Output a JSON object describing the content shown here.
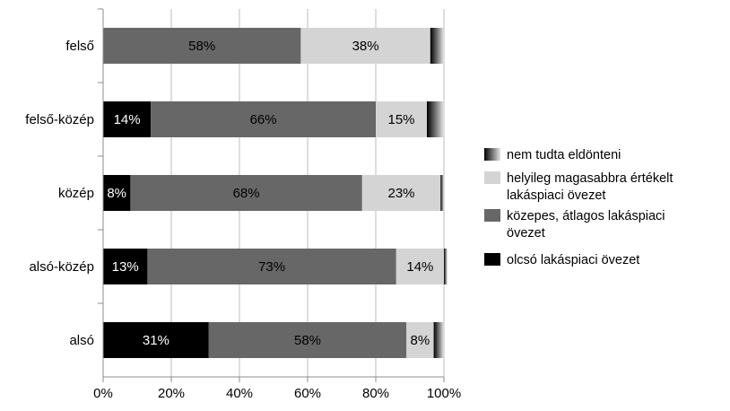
{
  "chart_data": {
    "type": "bar",
    "orientation": "horizontal",
    "stacked": "percent",
    "categories": [
      "felső",
      "felső-közép",
      "közép",
      "alsó-közép",
      "alsó"
    ],
    "series": [
      {
        "name": "olcsó lakáspiaci övezet",
        "values": [
          0,
          14,
          8,
          13,
          31
        ],
        "labels": [
          "",
          "14%",
          "8%",
          "13%",
          "31%"
        ],
        "color": "#000000",
        "label_color": "#ffffff"
      },
      {
        "name": "közepes, átlagos lakáspiaci övezet",
        "values": [
          58,
          66,
          68,
          73,
          58
        ],
        "labels": [
          "58%",
          "66%",
          "68%",
          "73%",
          "58%"
        ],
        "color": "#676767",
        "label_color": "#000000"
      },
      {
        "name": "helyileg magasabbra értékelt lakáspiaci övezet",
        "values": [
          38,
          15,
          23,
          14,
          8
        ],
        "labels": [
          "38%",
          "15%",
          "23%",
          "14%",
          "8%"
        ],
        "color": "#d4d4d4",
        "label_color": "#000000"
      },
      {
        "name": "nem tudta eldönteni",
        "values": [
          4,
          5,
          1,
          1,
          3
        ],
        "labels": [
          "",
          "",
          "",
          "",
          ""
        ],
        "color": "gradient",
        "label_color": "#000000"
      }
    ],
    "xlim": [
      0,
      100
    ],
    "x_ticks": [
      "0%",
      "20%",
      "40%",
      "60%",
      "80%",
      "100%"
    ],
    "grid": "vertical",
    "legend_position": "right",
    "legend_order": [
      3,
      2,
      1,
      0
    ],
    "legend_lines": [
      [
        "nem tudta eldönteni"
      ],
      [
        "helyileg magasabbra értékelt",
        "lakáspiaci övezet"
      ],
      [
        "közepes, átlagos lakáspiaci",
        "övezet"
      ],
      [
        "olcsó lakáspiaci övezet"
      ]
    ],
    "title": "",
    "xlabel": "",
    "ylabel": ""
  }
}
